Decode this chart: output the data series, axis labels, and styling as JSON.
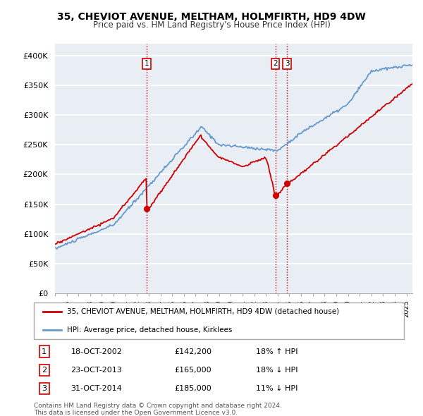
{
  "title": "35, CHEVIOT AVENUE, MELTHAM, HOLMFIRTH, HD9 4DW",
  "subtitle": "Price paid vs. HM Land Registry's House Price Index (HPI)",
  "legend_label_red": "35, CHEVIOT AVENUE, MELTHAM, HOLMFIRTH, HD9 4DW (detached house)",
  "legend_label_blue": "HPI: Average price, detached house, Kirklees",
  "transactions": [
    {
      "num": 1,
      "date": "18-OCT-2002",
      "price": 142200,
      "pct": "18%",
      "dir": "↑",
      "x_year": 2002.8
    },
    {
      "num": 2,
      "date": "23-OCT-2013",
      "price": 165000,
      "pct": "18%",
      "dir": "↓",
      "x_year": 2013.8
    },
    {
      "num": 3,
      "date": "31-OCT-2014",
      "price": 185000,
      "pct": "11%",
      "dir": "↓",
      "x_year": 2014.8
    }
  ],
  "footer": [
    "Contains HM Land Registry data © Crown copyright and database right 2024.",
    "This data is licensed under the Open Government Licence v3.0."
  ],
  "ylim": [
    0,
    420000
  ],
  "yticks": [
    0,
    50000,
    100000,
    150000,
    200000,
    250000,
    300000,
    350000,
    400000
  ],
  "red_color": "#cc0000",
  "blue_color": "#6699cc",
  "vline_color": "#cc0000",
  "dot_color": "#cc0000",
  "background_color": "#e8eef4",
  "grid_color": "#ffffff",
  "table_border_color": "#cc0000",
  "xlim_start": 1995,
  "xlim_end": 2025.5,
  "points_per_year": 12
}
